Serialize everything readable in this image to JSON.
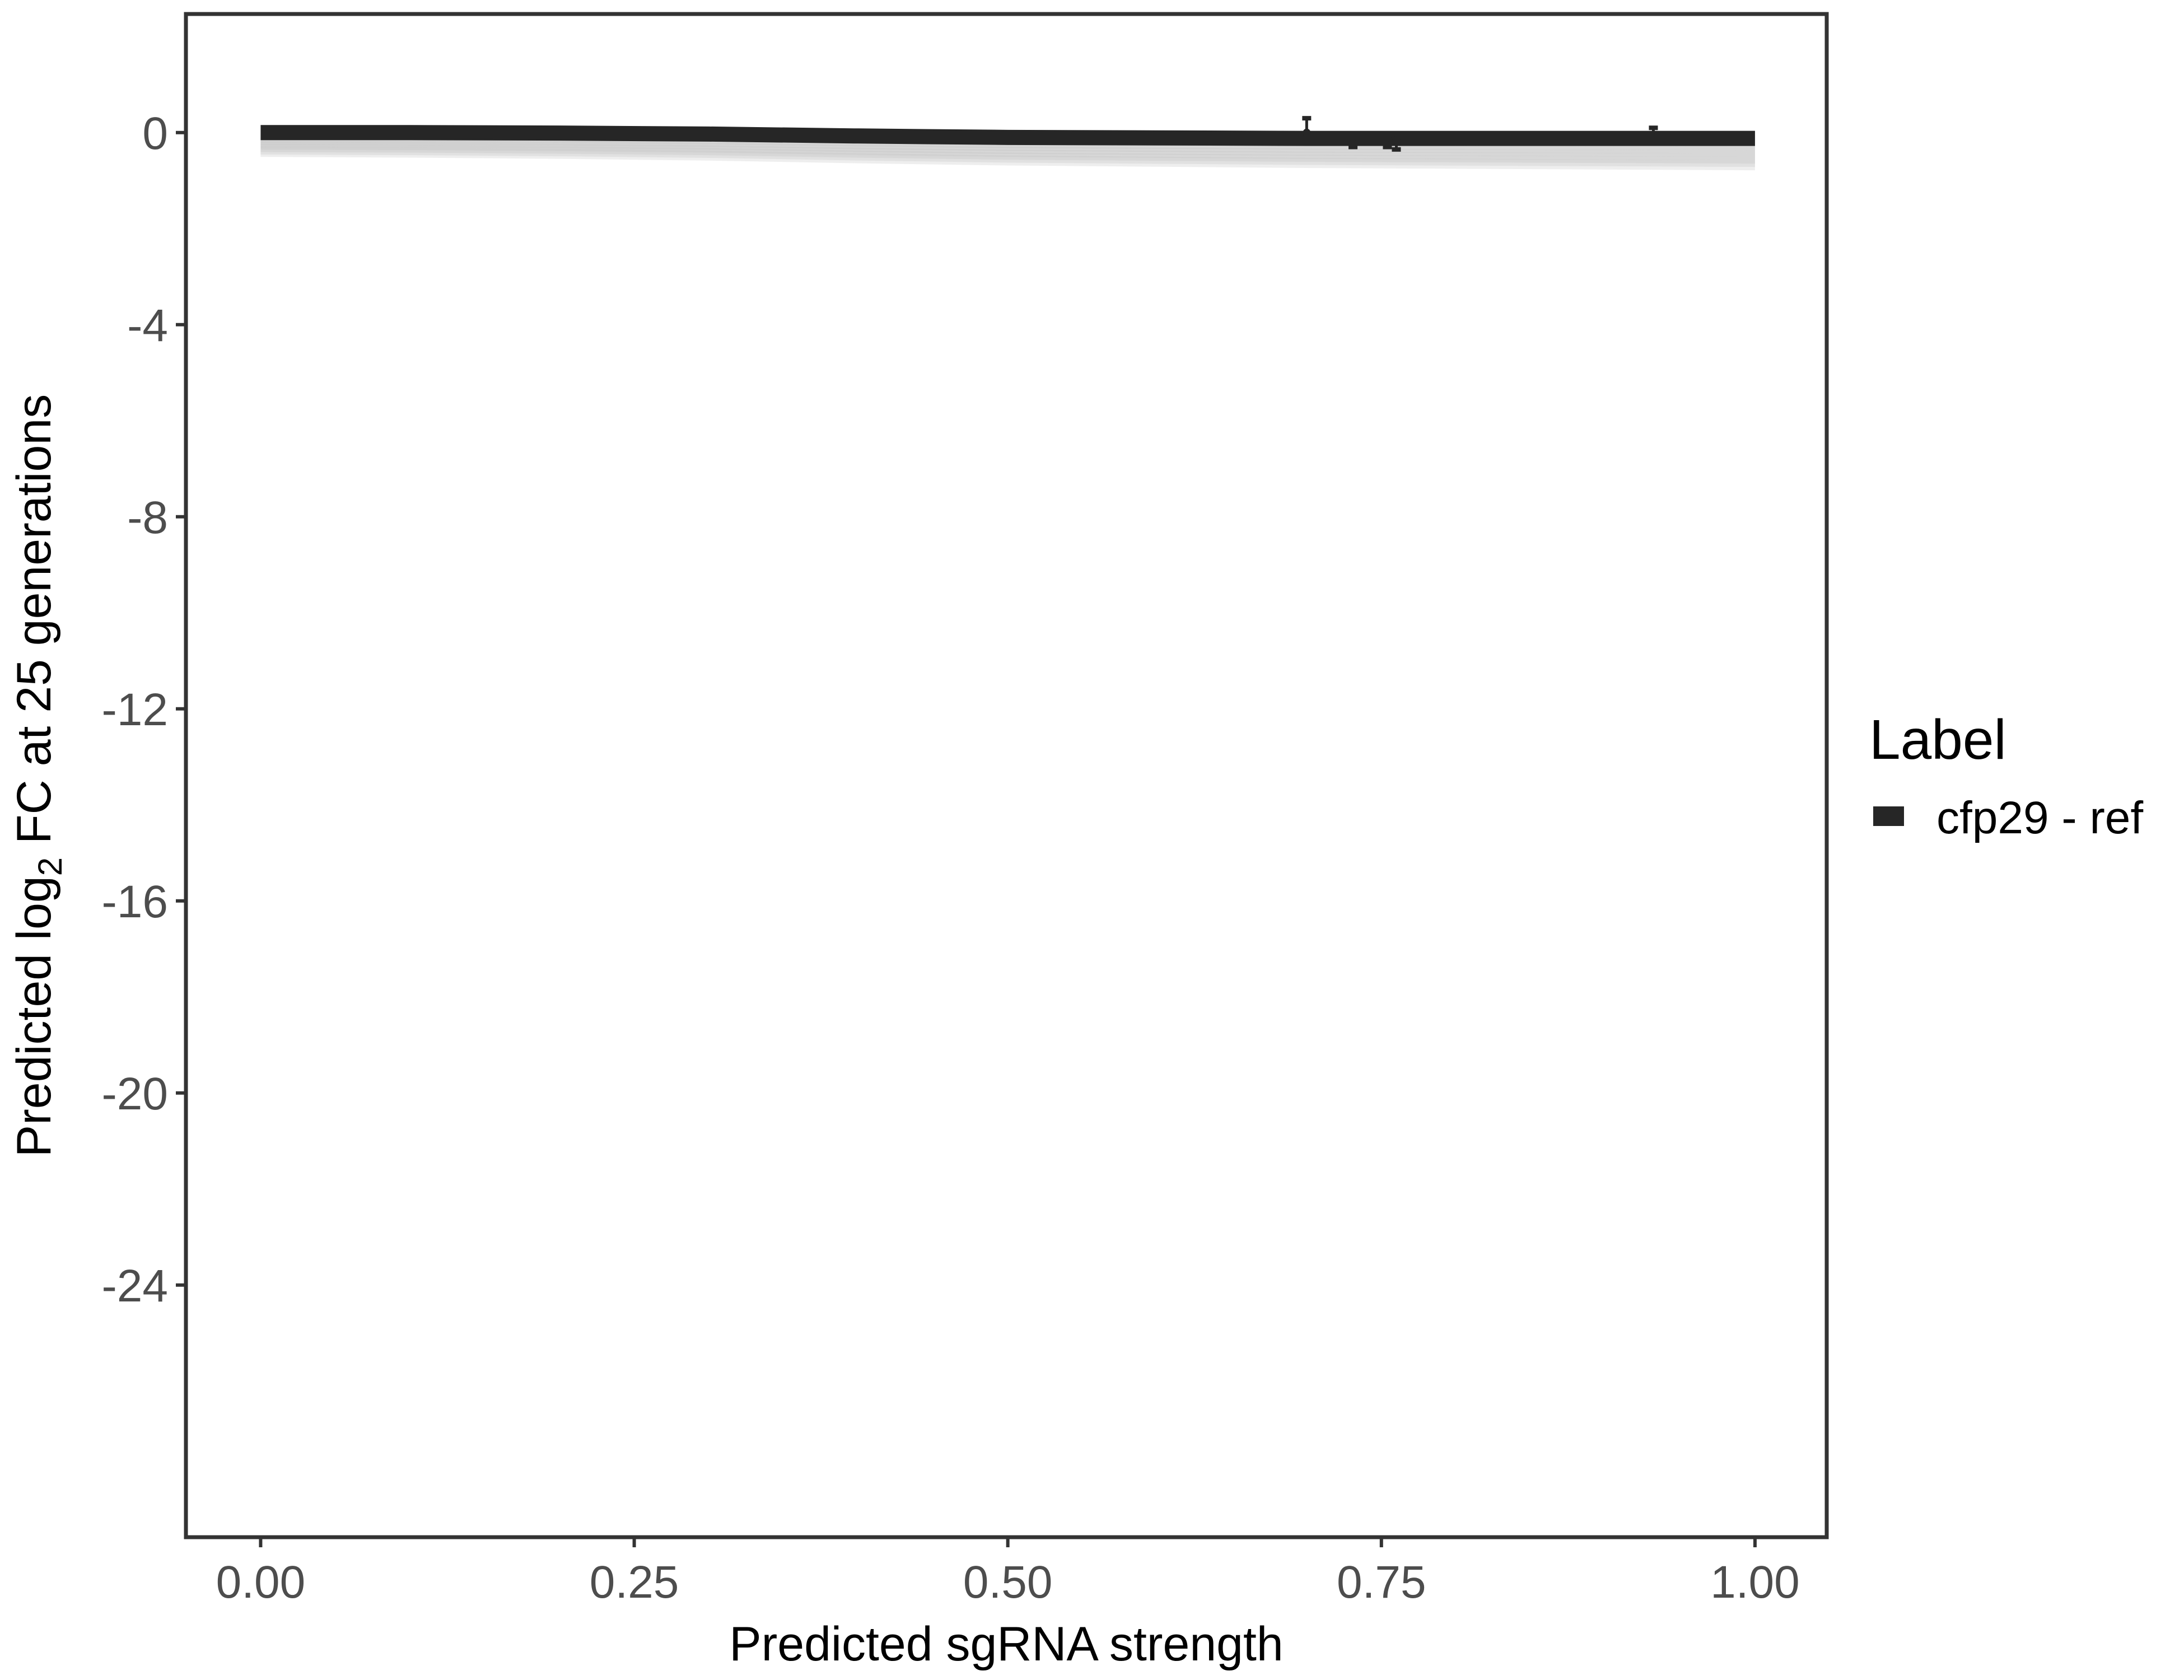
{
  "chart_data": {
    "type": "line",
    "title": "",
    "xlabel": "Predicted sgRNA strength",
    "ylabel_prefix": "Predicted  log",
    "ylabel_sub": "2",
    "ylabel_suffix": " FC at 25 generations",
    "xlim": [
      -0.05,
      1.048
    ],
    "ylim": [
      -29.25,
      2.47
    ],
    "xticks": [
      0,
      0.25,
      0.5,
      0.75,
      1
    ],
    "xtick_labels": [
      "0.00",
      "0.25",
      "0.50",
      "0.75",
      "1.00"
    ],
    "yticks": [
      0,
      -4,
      -8,
      -12,
      -16,
      -20,
      -24
    ],
    "ytick_labels": [
      "0",
      "-4",
      "-8",
      "-12",
      "-16",
      "-20",
      "-24"
    ],
    "grid": false,
    "legend": {
      "title": "Label",
      "position": "right",
      "entries": [
        "cfp29 - ref"
      ]
    },
    "series": [
      {
        "name": "cfp29 - ref",
        "color": "#262626",
        "x": [
          0,
          0.1,
          0.2,
          0.3,
          0.4,
          0.5,
          0.6,
          0.7,
          0.8,
          0.9,
          1.0
        ],
        "y": [
          0,
          0,
          -0.01,
          -0.03,
          -0.07,
          -0.1,
          -0.11,
          -0.12,
          -0.12,
          -0.12,
          -0.12
        ]
      }
    ],
    "points": [
      {
        "x": 0.7,
        "y": 0.0,
        "ymin": -0.1,
        "ymax": 0.3
      },
      {
        "x": 0.731,
        "y": -0.1,
        "ymin": -0.3,
        "ymax": -0.05
      },
      {
        "x": 0.754,
        "y": -0.1,
        "ymin": -0.3,
        "ymax": -0.05
      },
      {
        "x": 0.76,
        "y": -0.15,
        "ymin": -0.35,
        "ymax": -0.1
      },
      {
        "x": 0.932,
        "y": -0.1,
        "ymin": -0.2,
        "ymax": 0.1
      }
    ]
  }
}
